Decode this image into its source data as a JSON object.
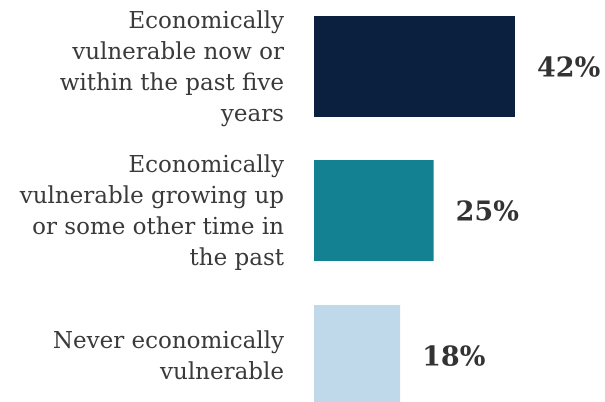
{
  "chart_data": {
    "type": "bar",
    "orientation": "horizontal",
    "categories": [
      [
        "Economically",
        "vulnerable now or",
        "within the past five",
        "years"
      ],
      [
        "Economically",
        "vulnerable growing up",
        "or some other time in",
        "the past"
      ],
      [
        "Never economically",
        "vulnerable"
      ]
    ],
    "values": [
      42,
      25,
      18
    ],
    "value_labels": [
      "42%",
      "25%",
      "18%"
    ],
    "colors": [
      "#0b1f3f",
      "#138192",
      "#bfd8ea"
    ],
    "xlim": [
      0,
      42
    ],
    "grid": false,
    "legend": "none"
  }
}
